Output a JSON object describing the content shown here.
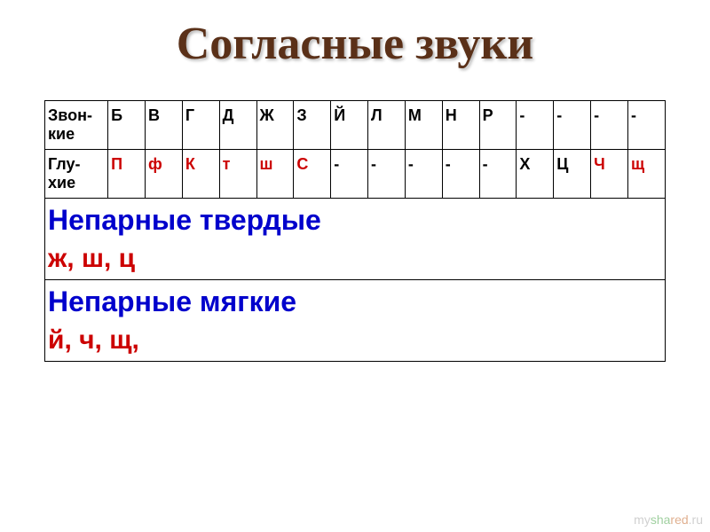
{
  "title": "Согласные звуки",
  "row1": {
    "label": "Звон-кие",
    "cells": [
      {
        "text": "Б",
        "color": "#000000"
      },
      {
        "text": "В",
        "color": "#000000"
      },
      {
        "text": "Г",
        "color": "#000000"
      },
      {
        "text": "Д",
        "color": "#000000"
      },
      {
        "text": "Ж",
        "color": "#000000"
      },
      {
        "text": "З",
        "color": "#000000"
      },
      {
        "text": "Й",
        "color": "#000000"
      },
      {
        "text": "Л",
        "color": "#000000"
      },
      {
        "text": "М",
        "color": "#000000"
      },
      {
        "text": "Н",
        "color": "#000000"
      },
      {
        "text": "Р",
        "color": "#000000"
      },
      {
        "text": "-",
        "color": "#000000"
      },
      {
        "text": "-",
        "color": "#000000"
      },
      {
        "text": "-",
        "color": "#000000"
      },
      {
        "text": "-",
        "color": "#000000"
      }
    ]
  },
  "row2": {
    "label": "Глу-хие",
    "cells": [
      {
        "text": "П",
        "color": "#cc0000"
      },
      {
        "text": "ф",
        "color": "#cc0000"
      },
      {
        "text": "К",
        "color": "#cc0000"
      },
      {
        "text": "т",
        "color": "#cc0000"
      },
      {
        "text": "ш",
        "color": "#cc0000"
      },
      {
        "text": "С",
        "color": "#cc0000"
      },
      {
        "text": "-",
        "color": "#000000"
      },
      {
        "text": "-",
        "color": "#000000"
      },
      {
        "text": "-",
        "color": "#000000"
      },
      {
        "text": "-",
        "color": "#000000"
      },
      {
        "text": "-",
        "color": "#000000"
      },
      {
        "text": "Х",
        "color": "#000000"
      },
      {
        "text": "Ц",
        "color": "#000000"
      },
      {
        "text": "Ч",
        "color": "#cc0000"
      },
      {
        "text": "щ",
        "color": "#cc0000"
      }
    ]
  },
  "section1": {
    "title": "Непарные твердые",
    "letters": "ж, ш, ц",
    "letters_color": "#cc0000"
  },
  "section2": {
    "title": "Непарные мягкие",
    "letters": "й, ч, щ,",
    "letters_color": "#cc0000"
  },
  "watermark": "myshared.ru"
}
